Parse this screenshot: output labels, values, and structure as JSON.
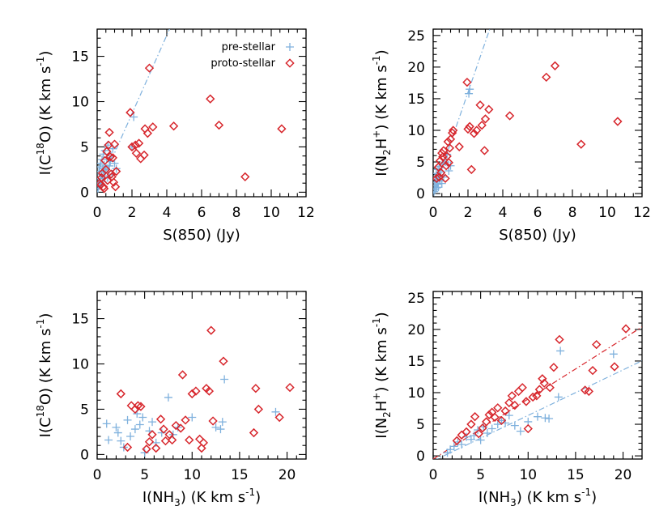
{
  "colors": {
    "pre": "#7fb1dd",
    "proto": "#d7262c"
  },
  "legend": {
    "pre": "pre-stellar",
    "proto": "proto-stellar"
  },
  "chart_data": [
    {
      "type": "scatter",
      "xlabel": "S(850) (Jy)",
      "ylabel": "I(C18O) (K km s-1)",
      "xlim": [
        0,
        12
      ],
      "ylim": [
        -0.5,
        18
      ],
      "xticks": [
        0,
        2,
        4,
        6,
        8,
        10,
        12
      ],
      "yticks": [
        0,
        5,
        10,
        15
      ],
      "series": [
        {
          "name": "pre-stellar",
          "marker": "plus",
          "points": [
            [
              0.05,
              0.4
            ],
            [
              0.08,
              1.0
            ],
            [
              0.1,
              2.3
            ],
            [
              0.12,
              0.7
            ],
            [
              0.15,
              2.8
            ],
            [
              0.18,
              1.5
            ],
            [
              0.2,
              3.2
            ],
            [
              0.22,
              0.9
            ],
            [
              0.25,
              2.0
            ],
            [
              0.28,
              3.6
            ],
            [
              0.3,
              1.2
            ],
            [
              0.32,
              2.6
            ],
            [
              0.35,
              4.2
            ],
            [
              0.38,
              1.8
            ],
            [
              0.4,
              3.0
            ],
            [
              0.42,
              2.2
            ],
            [
              0.45,
              4.6
            ],
            [
              0.5,
              2.5
            ],
            [
              0.55,
              3.8
            ],
            [
              0.6,
              1.6
            ],
            [
              0.62,
              5.2
            ],
            [
              0.7,
              2.9
            ],
            [
              0.75,
              3.4
            ],
            [
              0.8,
              4.0
            ],
            [
              0.85,
              2.0
            ],
            [
              0.9,
              4.8
            ],
            [
              1.0,
              3.2
            ],
            [
              1.1,
              2.6
            ],
            [
              2.0,
              5.0
            ],
            [
              2.1,
              8.3
            ]
          ]
        },
        {
          "name": "proto-stellar",
          "marker": "diamond",
          "points": [
            [
              0.15,
              1.0
            ],
            [
              0.2,
              0.8
            ],
            [
              0.25,
              1.6
            ],
            [
              0.3,
              2.1
            ],
            [
              0.35,
              0.6
            ],
            [
              0.4,
              0.4
            ],
            [
              0.45,
              3.5
            ],
            [
              0.5,
              2.5
            ],
            [
              0.55,
              4.5
            ],
            [
              0.6,
              1.3
            ],
            [
              0.65,
              5.2
            ],
            [
              0.7,
              6.6
            ],
            [
              0.75,
              3.9
            ],
            [
              0.8,
              2.0
            ],
            [
              0.85,
              1.7
            ],
            [
              0.9,
              3.8
            ],
            [
              0.95,
              1.1
            ],
            [
              1.0,
              5.3
            ],
            [
              1.05,
              0.6
            ],
            [
              1.1,
              2.3
            ],
            [
              1.9,
              8.8
            ],
            [
              2.0,
              5.0
            ],
            [
              2.2,
              5.2
            ],
            [
              2.25,
              4.3
            ],
            [
              2.4,
              5.4
            ],
            [
              2.5,
              3.7
            ],
            [
              2.7,
              4.1
            ],
            [
              2.75,
              7.0
            ],
            [
              2.9,
              6.5
            ],
            [
              3.0,
              13.7
            ],
            [
              3.2,
              7.2
            ],
            [
              4.4,
              7.3
            ],
            [
              6.5,
              10.3
            ],
            [
              7.0,
              7.4
            ],
            [
              8.5,
              1.7
            ],
            [
              10.6,
              7.0
            ]
          ]
        }
      ],
      "fit_lines": [
        {
          "series": "pre-stellar",
          "slope": 4.33,
          "intercept": 0.0
        }
      ],
      "legend_placement": "top-right"
    },
    {
      "type": "scatter",
      "xlabel": "S(850) (Jy)",
      "ylabel": "I(N2H+) (K km s-1)",
      "xlim": [
        0,
        12
      ],
      "ylim": [
        -0.5,
        26
      ],
      "xticks": [
        0,
        2,
        4,
        6,
        8,
        10,
        12
      ],
      "yticks": [
        0,
        5,
        10,
        15,
        20,
        25
      ],
      "series": [
        {
          "name": "pre-stellar",
          "marker": "plus",
          "points": [
            [
              0.05,
              0.3
            ],
            [
              0.08,
              1.2
            ],
            [
              0.1,
              2.5
            ],
            [
              0.12,
              0.6
            ],
            [
              0.15,
              1.8
            ],
            [
              0.18,
              3.2
            ],
            [
              0.2,
              0.9
            ],
            [
              0.22,
              2.2
            ],
            [
              0.25,
              1.5
            ],
            [
              0.28,
              3.8
            ],
            [
              0.3,
              1.0
            ],
            [
              0.32,
              2.8
            ],
            [
              0.35,
              4.3
            ],
            [
              0.4,
              2.0
            ],
            [
              0.45,
              3.4
            ],
            [
              0.5,
              1.6
            ],
            [
              0.55,
              4.6
            ],
            [
              0.6,
              2.6
            ],
            [
              0.7,
              5.0
            ],
            [
              0.8,
              6.2
            ],
            [
              0.9,
              3.6
            ],
            [
              1.0,
              4.4
            ],
            [
              2.05,
              15.8
            ],
            [
              2.1,
              16.5
            ]
          ]
        },
        {
          "name": "proto-stellar",
          "marker": "diamond",
          "points": [
            [
              0.2,
              2.4
            ],
            [
              0.3,
              4.2
            ],
            [
              0.35,
              2.6
            ],
            [
              0.4,
              5.2
            ],
            [
              0.45,
              3.3
            ],
            [
              0.5,
              6.4
            ],
            [
              0.55,
              5.8
            ],
            [
              0.6,
              6.8
            ],
            [
              0.7,
              2.4
            ],
            [
              0.75,
              4.4
            ],
            [
              0.8,
              5.9
            ],
            [
              0.85,
              8.2
            ],
            [
              0.9,
              4.9
            ],
            [
              0.95,
              7.2
            ],
            [
              1.0,
              8.6
            ],
            [
              1.1,
              9.6
            ],
            [
              1.15,
              10.0
            ],
            [
              1.5,
              7.4
            ],
            [
              1.95,
              17.6
            ],
            [
              2.0,
              10.2
            ],
            [
              2.1,
              10.6
            ],
            [
              2.2,
              3.8
            ],
            [
              2.35,
              9.5
            ],
            [
              2.5,
              10.0
            ],
            [
              2.7,
              14.0
            ],
            [
              2.8,
              10.8
            ],
            [
              2.95,
              6.8
            ],
            [
              3.0,
              11.8
            ],
            [
              3.2,
              13.3
            ],
            [
              4.4,
              12.3
            ],
            [
              6.5,
              18.4
            ],
            [
              7.0,
              20.2
            ],
            [
              8.5,
              7.8
            ],
            [
              10.6,
              11.4
            ]
          ]
        }
      ],
      "fit_lines": [
        {
          "series": "pre-stellar",
          "slope": 8.0,
          "intercept": 0.0
        }
      ]
    },
    {
      "type": "scatter",
      "xlabel": "I(NH3) (K km s-1)",
      "ylabel": "I(C18O) (K km s-1)",
      "xlim": [
        0,
        22
      ],
      "ylim": [
        -0.5,
        18
      ],
      "xticks": [
        0,
        5,
        10,
        15,
        20
      ],
      "yticks": [
        0,
        5,
        10,
        15
      ],
      "series": [
        {
          "name": "pre-stellar",
          "marker": "plus",
          "points": [
            [
              1.0,
              3.4
            ],
            [
              1.2,
              1.6
            ],
            [
              2.0,
              3.0
            ],
            [
              2.2,
              2.4
            ],
            [
              2.5,
              1.5
            ],
            [
              2.8,
              0.8
            ],
            [
              3.2,
              3.8
            ],
            [
              3.5,
              2.0
            ],
            [
              4.0,
              2.8
            ],
            [
              4.2,
              4.5
            ],
            [
              4.5,
              3.3
            ],
            [
              4.8,
              4.1
            ],
            [
              5.0,
              0.2
            ],
            [
              5.5,
              2.6
            ],
            [
              5.8,
              3.6
            ],
            [
              6.2,
              1.3
            ],
            [
              6.8,
              2.4
            ],
            [
              7.5,
              6.3
            ],
            [
              8.0,
              2.2
            ],
            [
              8.5,
              3.0
            ],
            [
              10.0,
              4.1
            ],
            [
              12.5,
              3.0
            ],
            [
              13.0,
              2.8
            ],
            [
              13.2,
              3.6
            ],
            [
              13.4,
              8.3
            ],
            [
              18.8,
              4.7
            ]
          ]
        },
        {
          "name": "proto-stellar",
          "marker": "diamond",
          "points": [
            [
              2.5,
              6.7
            ],
            [
              3.2,
              0.8
            ],
            [
              3.6,
              5.4
            ],
            [
              4.0,
              5.0
            ],
            [
              4.3,
              5.4
            ],
            [
              4.6,
              5.3
            ],
            [
              5.2,
              0.6
            ],
            [
              5.5,
              1.4
            ],
            [
              5.8,
              2.2
            ],
            [
              6.2,
              0.7
            ],
            [
              6.7,
              3.9
            ],
            [
              7.0,
              2.8
            ],
            [
              7.2,
              1.5
            ],
            [
              7.6,
              2.2
            ],
            [
              7.9,
              1.6
            ],
            [
              8.3,
              3.2
            ],
            [
              8.8,
              2.9
            ],
            [
              9.0,
              8.8
            ],
            [
              9.3,
              3.8
            ],
            [
              9.7,
              1.6
            ],
            [
              10.0,
              6.7
            ],
            [
              10.4,
              7.0
            ],
            [
              10.8,
              1.7
            ],
            [
              11.0,
              0.7
            ],
            [
              11.2,
              1.3
            ],
            [
              11.5,
              7.3
            ],
            [
              11.8,
              7.0
            ],
            [
              12.0,
              13.7
            ],
            [
              12.2,
              3.7
            ],
            [
              13.3,
              10.3
            ],
            [
              16.5,
              2.4
            ],
            [
              16.7,
              7.3
            ],
            [
              17.0,
              5.0
            ],
            [
              19.2,
              4.1
            ],
            [
              20.3,
              7.4
            ]
          ]
        }
      ]
    },
    {
      "type": "scatter",
      "xlabel": "I(NH3) (K km s-1)",
      "ylabel": "I(N2H+) (K km s-1)",
      "xlim": [
        0,
        22
      ],
      "ylim": [
        -0.5,
        26
      ],
      "xticks": [
        0,
        5,
        10,
        15,
        20
      ],
      "yticks": [
        0,
        5,
        10,
        15,
        20,
        25
      ],
      "series": [
        {
          "name": "pre-stellar",
          "marker": "plus",
          "points": [
            [
              1.5,
              0.5
            ],
            [
              1.8,
              1.0
            ],
            [
              2.2,
              1.5
            ],
            [
              2.6,
              2.2
            ],
            [
              3.0,
              1.8
            ],
            [
              3.5,
              3.0
            ],
            [
              4.0,
              2.6
            ],
            [
              4.3,
              3.2
            ],
            [
              4.7,
              4.1
            ],
            [
              5.0,
              2.5
            ],
            [
              5.3,
              4.6
            ],
            [
              5.7,
              3.6
            ],
            [
              6.2,
              4.3
            ],
            [
              6.8,
              5.0
            ],
            [
              7.2,
              5.6
            ],
            [
              7.6,
              5.2
            ],
            [
              8.0,
              6.4
            ],
            [
              8.6,
              4.8
            ],
            [
              9.2,
              3.9
            ],
            [
              10.0,
              5.4
            ],
            [
              11.0,
              6.2
            ],
            [
              11.8,
              6.0
            ],
            [
              12.2,
              5.9
            ],
            [
              13.4,
              16.6
            ],
            [
              13.2,
              9.3
            ],
            [
              19.0,
              16.1
            ]
          ]
        },
        {
          "name": "proto-stellar",
          "marker": "diamond",
          "points": [
            [
              2.5,
              2.4
            ],
            [
              3.0,
              3.3
            ],
            [
              3.5,
              3.8
            ],
            [
              4.0,
              5.0
            ],
            [
              4.4,
              6.2
            ],
            [
              4.8,
              3.5
            ],
            [
              5.2,
              4.4
            ],
            [
              5.6,
              5.4
            ],
            [
              5.9,
              6.5
            ],
            [
              6.2,
              6.9
            ],
            [
              6.5,
              6.1
            ],
            [
              6.8,
              7.6
            ],
            [
              7.2,
              5.6
            ],
            [
              7.6,
              7.1
            ],
            [
              8.0,
              8.4
            ],
            [
              8.3,
              9.5
            ],
            [
              8.6,
              8.0
            ],
            [
              9.0,
              10.2
            ],
            [
              9.4,
              10.8
            ],
            [
              9.8,
              8.6
            ],
            [
              10.0,
              4.3
            ],
            [
              10.5,
              9.3
            ],
            [
              10.9,
              9.5
            ],
            [
              11.2,
              10.5
            ],
            [
              11.5,
              12.2
            ],
            [
              11.7,
              11.5
            ],
            [
              12.3,
              10.8
            ],
            [
              12.7,
              14.0
            ],
            [
              13.3,
              18.4
            ],
            [
              16.0,
              10.4
            ],
            [
              16.4,
              10.2
            ],
            [
              16.8,
              13.5
            ],
            [
              17.2,
              17.6
            ],
            [
              19.1,
              14.1
            ],
            [
              20.3,
              20.1
            ]
          ]
        }
      ],
      "fit_lines": [
        {
          "series": "proto-stellar",
          "slope": 0.95,
          "intercept": -0.5
        },
        {
          "series": "pre-stellar",
          "slope": 0.72,
          "intercept": -0.8
        }
      ]
    }
  ]
}
